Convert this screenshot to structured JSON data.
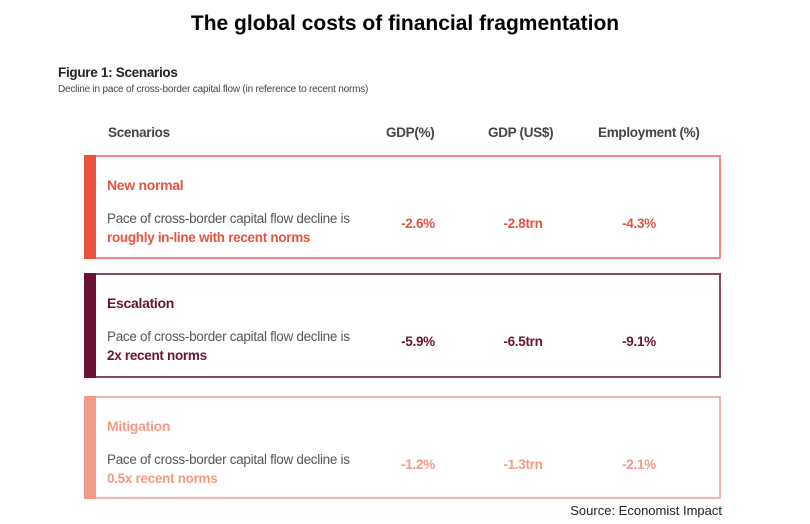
{
  "title": "The global costs of financial fragmentation",
  "figure": {
    "title": "Figure 1: Scenarios",
    "subtitle": "Decline in pace of cross-border capital flow (in reference to recent norms)"
  },
  "headers": [
    "Scenarios",
    "GDP(%)",
    "GDP (US$)",
    "Employment (%)"
  ],
  "scenarios": [
    {
      "name": "New normal",
      "desc_prefix": "Pace of cross-border capital flow decline is ",
      "desc_highlight": "roughly in-line with recent norms",
      "gdp_pct": "-2.6%",
      "gdp_usd": "-2.8trn",
      "employment": "-4.3%",
      "color": "#e8523f",
      "border": "#f08a80"
    },
    {
      "name": "Escalation",
      "desc_prefix": "Pace of cross-border capital flow decline is ",
      "desc_highlight": "2x recent norms",
      "gdp_pct": "-5.9%",
      "gdp_usd": "-6.5trn",
      "employment": "-9.1%",
      "color": "#6b1237",
      "border": "#8a4468"
    },
    {
      "name": "Mitigation",
      "desc_prefix": "Pace of cross-border capital flow decline is ",
      "desc_highlight": "0.5x recent norms",
      "gdp_pct": "-1.2%",
      "gdp_usd": "-1.3trn",
      "employment": "-2.1%",
      "color": "#f39a86",
      "border": "#f6b5a8"
    }
  ],
  "source": "Source: Economist Impact"
}
